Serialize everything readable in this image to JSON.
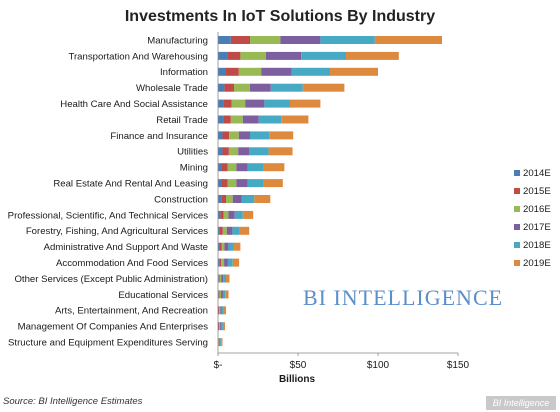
{
  "chart_data": {
    "type": "bar",
    "orientation": "horizontal",
    "stacked": true,
    "title": "Investments In IoT Solutions By Industry",
    "xlabel": "Billions",
    "ylabel": "",
    "xlim": [
      0,
      150
    ],
    "x_ticks": [
      0,
      50,
      100,
      150
    ],
    "x_tick_labels": [
      "$-",
      "$50",
      "$100",
      "$150"
    ],
    "grid": false,
    "legend_position": "right",
    "categories": [
      "Manufacturing",
      "Transportation And Warehousing",
      "Information",
      "Wholesale Trade",
      "Health Care And Social Assistance",
      "Retail Trade",
      "Finance and Insurance",
      "Utilities",
      "Mining",
      "Real Estate And Rental And Leasing",
      "Construction",
      "Professional, Scientific, And Technical Services",
      "Forestry, Fishing, And Agricultural Services",
      "Administrative And Support And Waste",
      "Accommodation And Food Services",
      "Other Services (Except Public Administration)",
      "Educational Services",
      "Arts, Entertainment, And Recreation",
      "Management Of Companies And Enterprises",
      "Structure and Equipment Expenditures Serving"
    ],
    "series": [
      {
        "name": "2014E",
        "color": "#4a7fb5",
        "values": [
          8,
          6,
          5,
          4,
          3.5,
          3.2,
          2.8,
          2.8,
          2.5,
          2.5,
          2,
          1.5,
          1.2,
          0.9,
          0.8,
          0.5,
          0.4,
          0.3,
          0.3,
          0.2
        ]
      },
      {
        "name": "2015E",
        "color": "#be4b48",
        "values": [
          12,
          8,
          8,
          6,
          5,
          4.8,
          4.2,
          4,
          3.5,
          3.5,
          3,
          2,
          1.8,
          1.3,
          1.2,
          0.6,
          0.6,
          0.5,
          0.4,
          0.3
        ]
      },
      {
        "name": "2016E",
        "color": "#98b954",
        "values": [
          19,
          16,
          14,
          10,
          8.5,
          7.5,
          6,
          5.8,
          5.5,
          5.5,
          4.2,
          3,
          2.5,
          1.8,
          1.8,
          0.9,
          0.9,
          0.7,
          0.6,
          0.4
        ]
      },
      {
        "name": "2017E",
        "color": "#7d5fa0",
        "values": [
          25,
          22,
          19,
          13,
          12,
          10,
          7,
          7,
          7,
          7,
          5.5,
          4,
          3.5,
          2.5,
          2.4,
          1.3,
          1.2,
          0.9,
          0.8,
          0.5
        ]
      },
      {
        "name": "2018E",
        "color": "#46aac5",
        "values": [
          34,
          28,
          24,
          20,
          16,
          14,
          12,
          12,
          10,
          10,
          8,
          5,
          4.5,
          3.2,
          3,
          1.7,
          1.5,
          1.1,
          1,
          0.6
        ]
      },
      {
        "name": "2019E",
        "color": "#de8a3e",
        "values": [
          42,
          33,
          30,
          26,
          19,
          17,
          15,
          15,
          13,
          12,
          10,
          6.5,
          6,
          4.3,
          4,
          2.2,
          2,
          1.5,
          1.3,
          0.8
        ]
      }
    ]
  },
  "watermark": "BI INTELLIGENCE",
  "source": "Source: BI Intelligence Estimates",
  "brand_badge": "BI Intelligence"
}
